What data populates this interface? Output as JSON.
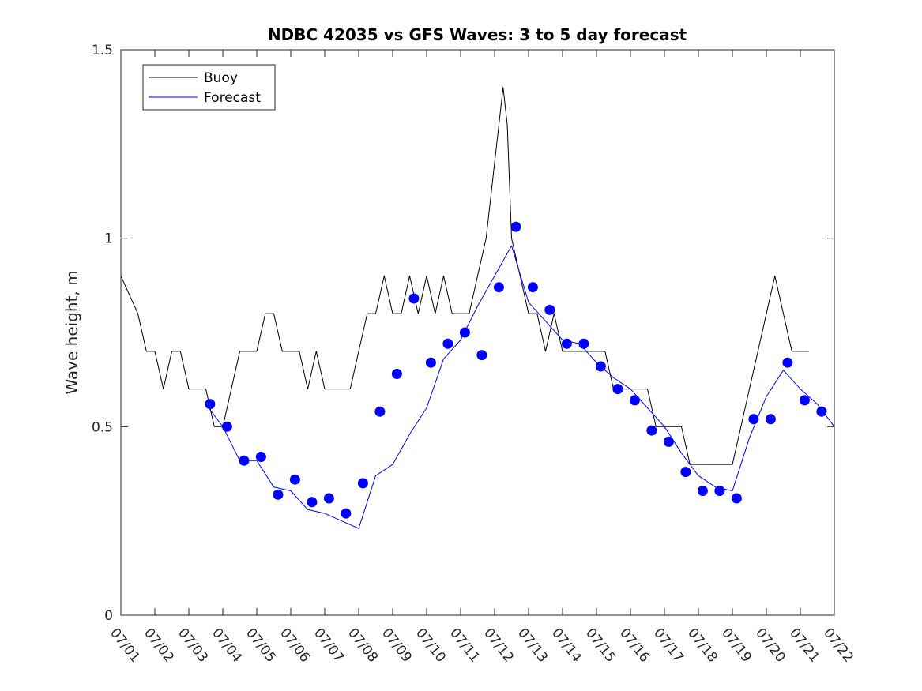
{
  "chart_data": {
    "type": "line",
    "title": "NDBC 42035 vs GFS Waves: 3 to 5 day forecast",
    "xlabel": "",
    "ylabel": "Wave height, m",
    "xlim": [
      "07/01",
      "07/22"
    ],
    "ylim": [
      0,
      1.5
    ],
    "yticks": [
      "0",
      "0.5",
      "1",
      "1.5"
    ],
    "xticks": [
      "07/01",
      "07/02",
      "07/03",
      "07/04",
      "07/05",
      "07/06",
      "07/07",
      "07/08",
      "07/09",
      "07/10",
      "07/11",
      "07/12",
      "07/13",
      "07/14",
      "07/15",
      "07/16",
      "07/17",
      "07/18",
      "07/19",
      "07/20",
      "07/21",
      "07/22"
    ],
    "grid": false,
    "legend": {
      "position": "top-left",
      "entries": [
        {
          "label": "Buoy",
          "color": "#000000"
        },
        {
          "label": "Forecast",
          "color": "#0000ff"
        }
      ]
    },
    "series": [
      {
        "name": "Buoy",
        "color": "#000000",
        "x": [
          "07/01 00:00",
          "07/01 12:00",
          "07/01 18:00",
          "07/02 00:00",
          "07/02 06:00",
          "07/02 12:00",
          "07/02 18:00",
          "07/03 00:00",
          "07/03 06:00",
          "07/03 12:00",
          "07/03 18:00",
          "07/04 00:00",
          "07/04 06:00",
          "07/04 12:00",
          "07/04 18:00",
          "07/05 00:00",
          "07/05 06:00",
          "07/05 12:00",
          "07/05 18:00",
          "07/06 00:00",
          "07/06 06:00",
          "07/06 12:00",
          "07/06 18:00",
          "07/07 00:00",
          "07/07 06:00",
          "07/07 12:00",
          "07/07 18:00",
          "07/08 00:00",
          "07/08 06:00",
          "07/08 12:00",
          "07/08 18:00",
          "07/09 00:00",
          "07/09 06:00",
          "07/09 12:00",
          "07/09 18:00",
          "07/10 00:00",
          "07/10 06:00",
          "07/10 12:00",
          "07/10 18:00",
          "07/11 00:00",
          "07/11 06:00",
          "07/11 12:00",
          "07/11 18:00",
          "07/12 00:00",
          "07/12 06:00",
          "07/12 09:00",
          "07/12 12:00",
          "07/12 18:00",
          "07/13 00:00",
          "07/13 06:00",
          "07/13 12:00",
          "07/13 18:00",
          "07/14 00:00",
          "07/14 06:00",
          "07/14 12:00",
          "07/14 18:00",
          "07/15 00:00",
          "07/15 06:00",
          "07/15 12:00",
          "07/15 18:00",
          "07/16 00:00",
          "07/16 06:00",
          "07/16 12:00",
          "07/16 18:00",
          "07/17 00:00",
          "07/17 06:00",
          "07/17 12:00",
          "07/17 18:00",
          "07/18 00:00",
          "07/18 06:00",
          "07/18 12:00",
          "07/18 18:00",
          "07/19 00:00",
          "07/19 06:00",
          "07/19 12:00",
          "07/19 18:00",
          "07/20 00:00",
          "07/20 06:00",
          "07/20 12:00",
          "07/20 18:00",
          "07/21 00:00",
          "07/21 06:00"
        ],
        "y": [
          0.9,
          0.8,
          0.7,
          0.7,
          0.6,
          0.7,
          0.7,
          0.6,
          0.6,
          0.6,
          0.5,
          0.5,
          0.6,
          0.7,
          0.7,
          0.7,
          0.8,
          0.8,
          0.7,
          0.7,
          0.7,
          0.6,
          0.7,
          0.6,
          0.6,
          0.6,
          0.6,
          0.7,
          0.8,
          0.8,
          0.9,
          0.8,
          0.8,
          0.9,
          0.8,
          0.9,
          0.8,
          0.9,
          0.8,
          0.8,
          0.8,
          0.9,
          1.0,
          1.2,
          1.4,
          1.3,
          1.0,
          0.9,
          0.8,
          0.8,
          0.7,
          0.8,
          0.7,
          0.7,
          0.7,
          0.7,
          0.7,
          0.7,
          0.6,
          0.6,
          0.6,
          0.6,
          0.6,
          0.5,
          0.5,
          0.5,
          0.5,
          0.4,
          0.4,
          0.4,
          0.4,
          0.4,
          0.4,
          0.5,
          0.6,
          0.7,
          0.8,
          0.9,
          0.8,
          0.7,
          0.7,
          0.7
        ]
      },
      {
        "name": "Forecast",
        "color": "#0000ff",
        "x": [
          "07/03 12:00",
          "07/04 00:00",
          "07/04 12:00",
          "07/05 00:00",
          "07/05 12:00",
          "07/06 00:00",
          "07/06 12:00",
          "07/07 00:00",
          "07/07 12:00",
          "07/08 00:00",
          "07/08 12:00",
          "07/09 00:00",
          "07/09 12:00",
          "07/10 00:00",
          "07/10 12:00",
          "07/11 00:00",
          "07/11 12:00",
          "07/12 00:00",
          "07/12 12:00",
          "07/13 00:00",
          "07/13 12:00",
          "07/14 00:00",
          "07/14 12:00",
          "07/15 00:00",
          "07/15 12:00",
          "07/16 00:00",
          "07/16 12:00",
          "07/17 00:00",
          "07/17 12:00",
          "07/18 00:00",
          "07/18 12:00",
          "07/19 00:00",
          "07/19 12:00",
          "07/20 00:00",
          "07/20 12:00",
          "07/21 00:00",
          "07/21 12:00",
          "07/22 00:00"
        ],
        "y": [
          0.56,
          0.5,
          0.41,
          0.41,
          0.34,
          0.33,
          0.28,
          0.27,
          0.25,
          0.23,
          0.37,
          0.4,
          0.48,
          0.55,
          0.68,
          0.73,
          0.82,
          0.9,
          0.98,
          0.83,
          0.78,
          0.73,
          0.72,
          0.67,
          0.63,
          0.6,
          0.55,
          0.5,
          0.43,
          0.37,
          0.34,
          0.33,
          0.47,
          0.58,
          0.65,
          0.6,
          0.56,
          0.5
        ]
      }
    ],
    "markers": {
      "name": "Forecast",
      "color": "#0000ff",
      "x": [
        "07/03 15:00",
        "07/04 03:00",
        "07/04 15:00",
        "07/05 03:00",
        "07/05 15:00",
        "07/06 03:00",
        "07/06 15:00",
        "07/07 03:00",
        "07/07 15:00",
        "07/08 03:00",
        "07/08 15:00",
        "07/09 03:00",
        "07/09 15:00",
        "07/10 03:00",
        "07/10 15:00",
        "07/11 03:00",
        "07/11 15:00",
        "07/12 03:00",
        "07/12 15:00",
        "07/13 03:00",
        "07/13 15:00",
        "07/14 03:00",
        "07/14 15:00",
        "07/15 03:00",
        "07/15 15:00",
        "07/16 03:00",
        "07/16 15:00",
        "07/17 03:00",
        "07/17 15:00",
        "07/18 03:00",
        "07/18 15:00",
        "07/19 03:00",
        "07/19 15:00",
        "07/20 03:00",
        "07/20 15:00",
        "07/21 03:00",
        "07/21 15:00"
      ],
      "y": [
        0.56,
        0.5,
        0.41,
        0.42,
        0.32,
        0.36,
        0.3,
        0.31,
        0.27,
        0.35,
        0.54,
        0.64,
        0.84,
        0.67,
        0.72,
        0.75,
        0.69,
        0.87,
        1.03,
        0.87,
        0.81,
        0.72,
        0.72,
        0.66,
        0.6,
        0.57,
        0.49,
        0.46,
        0.38,
        0.33,
        0.33,
        0.31,
        0.52,
        0.52,
        0.67,
        0.57,
        0.54
      ]
    }
  }
}
